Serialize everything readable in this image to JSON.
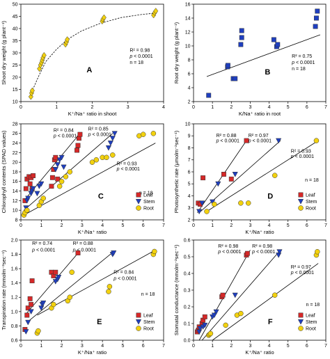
{
  "chart_data": [
    {
      "id": "A",
      "type": "scatter",
      "panel_letter": "A",
      "xlabel": "K⁺/Na⁺ ratio in shoot",
      "ylabel": "Shoot dry weight (g plant⁻¹)",
      "xlim": [
        0,
        4
      ],
      "ylim": [
        10,
        50
      ],
      "xticks": [
        0,
        1,
        2,
        3,
        4
      ],
      "yticks": [
        10,
        15,
        20,
        25,
        30,
        35,
        40,
        45,
        50
      ],
      "fit": "curve",
      "curve": [
        [
          0.25,
          11.5
        ],
        [
          0.35,
          15.5
        ],
        [
          0.5,
          20.5
        ],
        [
          0.7,
          26.5
        ],
        [
          1.0,
          31.5
        ],
        [
          1.3,
          35.5
        ],
        [
          1.7,
          39.0
        ],
        [
          2.2,
          42.0
        ],
        [
          2.8,
          44.5
        ],
        [
          3.4,
          45.8
        ],
        [
          3.75,
          46.3
        ]
      ],
      "series": [
        {
          "name": "",
          "marker": "diamond",
          "color": "#f2d10f",
          "x": [
            0.28,
            0.3,
            0.32,
            0.52,
            0.55,
            0.58,
            0.6,
            0.62,
            0.65,
            1.25,
            1.28,
            1.3,
            2.28,
            2.3,
            2.33,
            3.72,
            3.75,
            3.78
          ],
          "y": [
            12.0,
            13.5,
            14.5,
            23.5,
            25.0,
            26.0,
            27.0,
            28.0,
            29.0,
            33.5,
            34.5,
            35.5,
            43.0,
            43.8,
            44.5,
            45.5,
            46.5,
            47.2
          ]
        }
      ],
      "annotations": [
        {
          "text": "R² = 0.98",
          "at": [
            3.05,
            30.5
          ]
        },
        {
          "text": "p < 0.0001",
          "at": [
            3.05,
            28.0
          ],
          "italic_p": true
        },
        {
          "text": "n = 18",
          "at": [
            3.05,
            25.5
          ]
        }
      ]
    },
    {
      "id": "B",
      "type": "scatter",
      "panel_letter": "B",
      "xlabel": "K/Na⁺ ratio in root",
      "ylabel": "Root dry weight (g plant⁻¹)",
      "xlim": [
        0,
        7
      ],
      "ylim": [
        2,
        16
      ],
      "xticks": [
        0,
        1,
        2,
        3,
        4,
        5,
        6,
        7
      ],
      "yticks": [
        2,
        4,
        6,
        8,
        10,
        12,
        14,
        16
      ],
      "fit": "line",
      "line": [
        [
          0.7,
          5.6
        ],
        [
          6.7,
          11.6
        ]
      ],
      "series": [
        {
          "name": "",
          "marker": "square",
          "color": "#1f3fbf",
          "x": [
            0.8,
            1.8,
            1.82,
            2.1,
            2.2,
            2.5,
            2.55,
            2.55,
            4.25,
            4.4,
            4.45,
            6.45,
            6.5,
            6.55
          ],
          "y": [
            2.9,
            7.0,
            7.2,
            5.3,
            5.3,
            10.2,
            11.2,
            12.2,
            10.9,
            9.9,
            10.2,
            12.8,
            14.0,
            15.0
          ]
        }
      ],
      "annotations": [
        {
          "text": "R² = 0.75",
          "at": [
            5.2,
            8.3
          ]
        },
        {
          "text": "p < 0.0001",
          "at": [
            5.2,
            7.4
          ],
          "italic_p": true
        },
        {
          "text": "n = 18",
          "at": [
            5.2,
            6.5
          ]
        }
      ]
    },
    {
      "id": "C",
      "type": "scatter",
      "panel_letter": "C",
      "xlabel": "K⁺/Na⁺ ratio",
      "ylabel": "Chlorophyll contents (SPAD values)",
      "xlim": [
        0,
        7
      ],
      "ylim": [
        8,
        28
      ],
      "xticks": [
        0,
        1,
        2,
        3,
        4,
        5,
        6,
        7
      ],
      "yticks": [
        8,
        10,
        12,
        14,
        16,
        18,
        20,
        22,
        24,
        26,
        28
      ],
      "fit": "lines",
      "lines": [
        {
          "series": "Leaf",
          "points": [
            [
              0.15,
              12.0
            ],
            [
              2.9,
              26.0
            ]
          ]
        },
        {
          "series": "Stem",
          "points": [
            [
              0.15,
              10.0
            ],
            [
              4.5,
              26.0
            ]
          ]
        },
        {
          "series": "Root",
          "points": [
            [
              0.15,
              9.0
            ],
            [
              6.6,
              24.0
            ]
          ]
        }
      ],
      "series": [
        {
          "name": "Leaf",
          "marker": "square",
          "color": "#d62828",
          "x": [
            0.2,
            0.25,
            0.3,
            0.4,
            0.45,
            0.5,
            0.55,
            0.6,
            1.5,
            1.55,
            1.6,
            1.65,
            1.7,
            1.8,
            2.75,
            2.8,
            2.85,
            2.9
          ],
          "y": [
            12.0,
            14.5,
            16.5,
            17.0,
            15.5,
            16.8,
            14.5,
            17.2,
            15.0,
            16.8,
            18.5,
            20.5,
            21.0,
            16.5,
            22.5,
            23.5,
            25.0,
            25.8
          ]
        },
        {
          "name": "Stem",
          "marker": "tri-down",
          "color": "#1f3fbf",
          "x": [
            0.25,
            0.3,
            0.35,
            0.5,
            0.55,
            0.6,
            0.8,
            0.9,
            1.0,
            1.7,
            1.8,
            1.9,
            2.0,
            2.1,
            4.3,
            4.4,
            4.5,
            4.6
          ],
          "y": [
            10.5,
            12.0,
            12.5,
            13.5,
            14.0,
            14.5,
            13.5,
            15.0,
            15.5,
            18.5,
            19.5,
            20.5,
            21.0,
            19.0,
            23.0,
            24.0,
            25.0,
            26.0
          ]
        },
        {
          "name": "Root",
          "marker": "circle",
          "color": "#f2d10f",
          "x": [
            0.15,
            0.2,
            0.3,
            0.9,
            1.0,
            1.1,
            1.9,
            2.0,
            2.2,
            2.4,
            3.5,
            3.7,
            4.0,
            4.2,
            4.5,
            5.8,
            6.0,
            6.5
          ],
          "y": [
            9.0,
            9.5,
            10.0,
            11.0,
            11.8,
            12.5,
            15.0,
            16.0,
            17.0,
            18.0,
            20.0,
            20.5,
            21.0,
            21.0,
            21.5,
            25.5,
            25.8,
            26.0
          ]
        }
      ],
      "annotations": [
        {
          "text": "R² = 0.84",
          "at": [
            1.6,
            26.3
          ]
        },
        {
          "text": "p < 0.0001",
          "at": [
            1.6,
            25.2
          ],
          "italic_p": true
        },
        {
          "text": "R² = 0.85",
          "at": [
            3.3,
            26.6
          ]
        },
        {
          "text": "p < 0.0001",
          "at": [
            3.3,
            25.5
          ],
          "italic_p": true
        },
        {
          "text": "R² = 0.93",
          "at": [
            4.7,
            19.4
          ]
        },
        {
          "text": "p < 0.0001",
          "at": [
            4.7,
            18.3
          ],
          "italic_p": true
        },
        {
          "text": "n = 18",
          "at": [
            5.8,
            13.3
          ]
        }
      ]
    },
    {
      "id": "D",
      "type": "scatter",
      "panel_letter": "D",
      "xlabel": "K⁺/Na⁺ ratio",
      "ylabel": "Photosynthetic rate (μmolm⁻²sec⁻¹)",
      "xlim": [
        0,
        7
      ],
      "ylim": [
        2,
        10
      ],
      "xticks": [
        0,
        1,
        2,
        3,
        4,
        5,
        6,
        7
      ],
      "yticks": [
        2,
        3,
        4,
        5,
        6,
        7,
        8,
        9,
        10
      ],
      "fit": "lines",
      "lines": [
        {
          "series": "Leaf",
          "points": [
            [
              0.2,
              2.6
            ],
            [
              2.8,
              8.6
            ]
          ]
        },
        {
          "series": "Stem",
          "points": [
            [
              0.3,
              2.6
            ],
            [
              4.6,
              8.6
            ]
          ]
        },
        {
          "series": "Root",
          "points": [
            [
              0.6,
              2.6
            ],
            [
              6.6,
              8.6
            ]
          ]
        }
      ],
      "series": [
        {
          "name": "Leaf",
          "marker": "square",
          "color": "#d62828",
          "x": [
            0.25,
            0.35,
            0.5,
            1.6,
            2.0,
            2.8
          ],
          "y": [
            3.4,
            3.3,
            5.5,
            5.8,
            5.4,
            8.6
          ]
        },
        {
          "name": "Stem",
          "marker": "tri-down",
          "color": "#1f3fbf",
          "x": [
            0.3,
            0.45,
            1.0,
            1.3,
            2.2,
            4.5
          ],
          "y": [
            2.7,
            3.4,
            3.5,
            5.0,
            5.8,
            8.6
          ]
        },
        {
          "name": "Root",
          "marker": "circle",
          "color": "#f2d10f",
          "x": [
            0.7,
            1.1,
            2.5,
            2.9,
            4.3,
            6.5
          ],
          "y": [
            2.7,
            3.3,
            3.4,
            3.4,
            5.7,
            8.6
          ]
        }
      ],
      "annotations": [
        {
          "text": "R² = 0.88",
          "at": [
            1.2,
            8.9
          ]
        },
        {
          "text": "p < 0.0001",
          "at": [
            1.2,
            8.45
          ],
          "italic_p": true
        },
        {
          "text": "R² = 0.97",
          "at": [
            2.9,
            8.9
          ]
        },
        {
          "text": "p < 0.0001",
          "at": [
            2.9,
            8.45
          ],
          "italic_p": true
        },
        {
          "text": "R² = 0.93",
          "at": [
            5.15,
            7.6
          ]
        },
        {
          "text": "p < 0.0001",
          "at": [
            5.15,
            7.15
          ],
          "italic_p": true
        },
        {
          "text": "n = 18",
          "at": [
            5.9,
            5.2
          ]
        }
      ]
    },
    {
      "id": "E",
      "type": "scatter",
      "panel_letter": "E",
      "xlabel": "K⁺/Na⁺ ratio",
      "ylabel": "Transpiration rate (mmolm⁻²sec⁻¹)",
      "xlim": [
        0,
        7
      ],
      "ylim": [
        0.6,
        2.0
      ],
      "xticks": [
        0,
        1,
        2,
        3,
        4,
        5,
        6,
        7
      ],
      "yticks": [
        0.6,
        0.8,
        1.0,
        1.2,
        1.4,
        1.6,
        1.8,
        2.0
      ],
      "fit": "lines",
      "lines": [
        {
          "series": "Leaf",
          "points": [
            [
              0.2,
              0.95
            ],
            [
              2.9,
              1.85
            ]
          ]
        },
        {
          "series": "Stem",
          "points": [
            [
              0.3,
              0.85
            ],
            [
              4.6,
              1.85
            ]
          ]
        },
        {
          "series": "Root",
          "points": [
            [
              0.8,
              0.95
            ],
            [
              6.6,
              1.86
            ]
          ]
        }
      ],
      "series": [
        {
          "name": "Leaf",
          "marker": "square",
          "color": "#d62828",
          "x": [
            0.2,
            0.3,
            0.35,
            0.45,
            0.5,
            0.55,
            1.5,
            1.6,
            1.7,
            2.8
          ],
          "y": [
            0.75,
            0.95,
            1.05,
            1.18,
            1.1,
            1.43,
            1.55,
            1.5,
            1.55,
            1.82
          ]
        },
        {
          "name": "Stem",
          "marker": "tri-down",
          "color": "#1f3fbf",
          "x": [
            0.25,
            0.35,
            0.5,
            1.0,
            1.05,
            1.1,
            1.7,
            1.8,
            1.85,
            4.5,
            4.55
          ],
          "y": [
            0.72,
            0.85,
            1.0,
            1.05,
            1.1,
            1.12,
            1.42,
            1.45,
            1.48,
            1.8,
            1.82
          ]
        },
        {
          "name": "Root",
          "marker": "circle",
          "color": "#f2d10f",
          "x": [
            0.8,
            0.85,
            1.5,
            1.6,
            2.3,
            2.4,
            2.5,
            4.3,
            4.35,
            6.5,
            6.55
          ],
          "y": [
            0.7,
            0.73,
            1.05,
            1.1,
            1.15,
            1.2,
            1.55,
            1.28,
            1.35,
            1.8,
            1.84
          ]
        }
      ],
      "annotations": [
        {
          "text": "R² = 0.74",
          "at": [
            0.55,
            1.93
          ]
        },
        {
          "text": "p < 0.0001",
          "at": [
            0.55,
            1.84
          ],
          "italic_p": true
        },
        {
          "text": "R² = 0.88",
          "at": [
            2.55,
            1.93
          ]
        },
        {
          "text": "p < 0.0001",
          "at": [
            2.55,
            1.84
          ],
          "italic_p": true
        },
        {
          "text": "R² = 0.84",
          "at": [
            4.55,
            1.53
          ]
        },
        {
          "text": "p < 0.0001",
          "at": [
            4.55,
            1.44
          ],
          "italic_p": true
        },
        {
          "text": "n = 18",
          "at": [
            5.9,
            1.22
          ]
        }
      ]
    },
    {
      "id": "F",
      "type": "scatter",
      "panel_letter": "F",
      "xlabel": "K⁺/Na⁺ ratio",
      "ylabel": "Stomatal conductance (mmolm⁻²sec⁻¹)",
      "xlim": [
        0,
        7
      ],
      "ylim": [
        0.0,
        0.6
      ],
      "xticks": [
        0,
        1,
        2,
        3,
        4,
        5,
        6,
        7
      ],
      "yticks": [
        0.0,
        0.1,
        0.2,
        0.3,
        0.4,
        0.5,
        0.6
      ],
      "fit": "lines",
      "lines": [
        {
          "series": "Leaf",
          "points": [
            [
              0.3,
              0.0
            ],
            [
              3.0,
              0.54
            ]
          ]
        },
        {
          "series": "Stem",
          "points": [
            [
              0.45,
              0.0
            ],
            [
              4.6,
              0.54
            ]
          ]
        },
        {
          "series": "Root",
          "points": [
            [
              1.0,
              0.0
            ],
            [
              6.6,
              0.46
            ]
          ]
        }
      ],
      "series": [
        {
          "name": "Leaf",
          "marker": "square",
          "color": "#d62828",
          "x": [
            0.2,
            0.25,
            0.3,
            0.45,
            0.5,
            0.6,
            1.5,
            1.55,
            2.8,
            2.85
          ],
          "y": [
            0.05,
            0.06,
            0.08,
            0.1,
            0.12,
            0.14,
            0.26,
            0.27,
            0.51,
            0.52
          ]
        },
        {
          "name": "Stem",
          "marker": "tri-down",
          "color": "#1f3fbf",
          "x": [
            0.3,
            0.35,
            0.5,
            0.6,
            1.0,
            1.1,
            1.2,
            2.2,
            4.5,
            4.55
          ],
          "y": [
            0.05,
            0.07,
            0.08,
            0.09,
            0.14,
            0.15,
            0.17,
            0.27,
            0.51,
            0.53
          ]
        },
        {
          "name": "Root",
          "marker": "circle",
          "color": "#f2d10f",
          "x": [
            0.8,
            0.85,
            0.9,
            1.7,
            2.3,
            2.5,
            4.3,
            6.5,
            6.55
          ],
          "y": [
            0.03,
            0.035,
            0.04,
            0.09,
            0.15,
            0.16,
            0.27,
            0.51,
            0.53
          ]
        }
      ],
      "annotations": [
        {
          "text": "R² = 0.98",
          "at": [
            1.3,
            0.555
          ]
        },
        {
          "text": "p < 0.0001",
          "at": [
            1.3,
            0.52
          ],
          "italic_p": true
        },
        {
          "text": "R² = 0.98",
          "at": [
            3.1,
            0.555
          ]
        },
        {
          "text": "p < 0.0001",
          "at": [
            3.1,
            0.52
          ],
          "italic_p": true
        },
        {
          "text": "R² = 0.97",
          "at": [
            5.15,
            0.43
          ]
        },
        {
          "text": "p < 0.0001",
          "at": [
            5.15,
            0.395
          ],
          "italic_p": true
        },
        {
          "text": "n = 18",
          "at": [
            5.95,
            0.205
          ]
        }
      ]
    }
  ]
}
